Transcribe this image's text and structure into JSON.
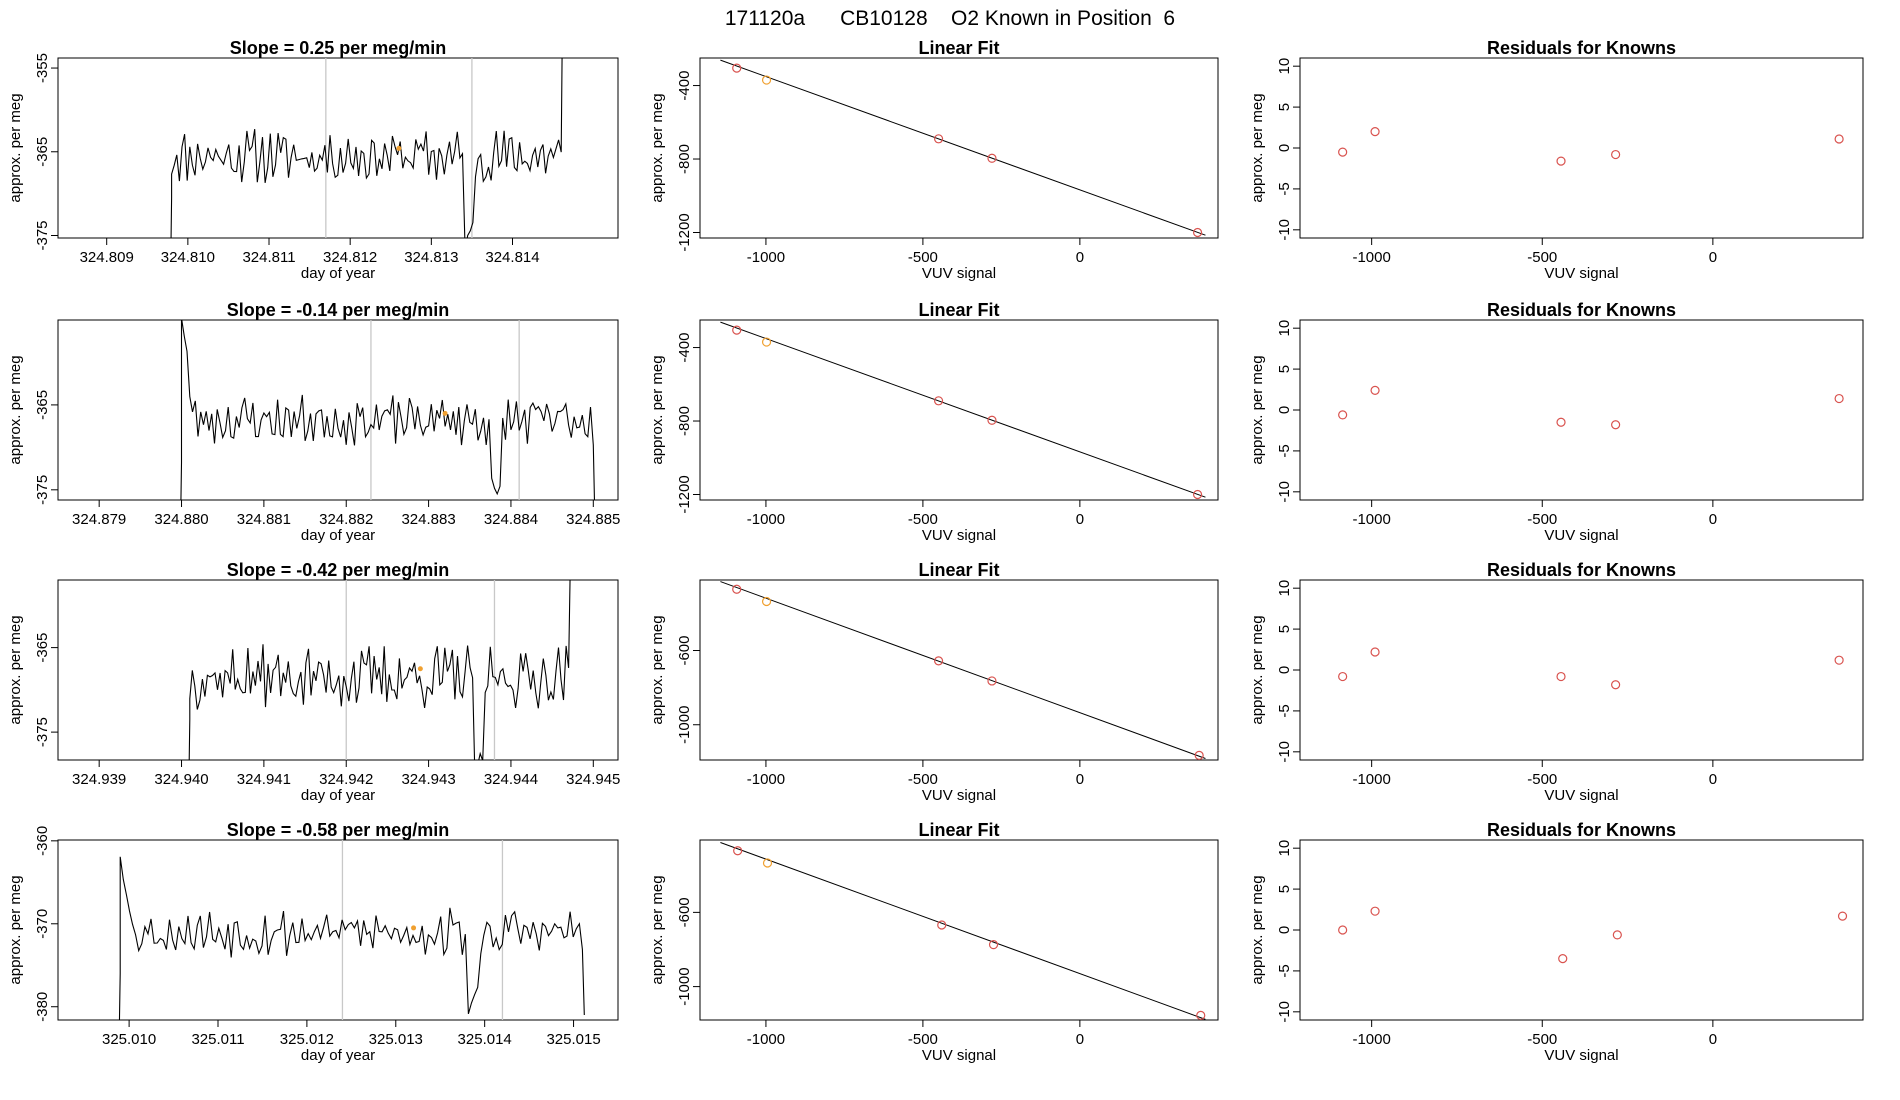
{
  "title": "171120a      CB10128    O2 Known in Position  6",
  "colors": {
    "point": "#d9534f",
    "highlight": "#f0a030",
    "line": "#000000",
    "marker": "#c8c8c8"
  },
  "chart_data": [
    {
      "type": "line",
      "title": "Slope =  0.25  per meg/min",
      "xlabel": "day of year",
      "ylabel": "approx. per meg",
      "xlim": [
        324.8084,
        324.8153
      ],
      "ylim": [
        -375.3,
        -353.8
      ],
      "xticks": [
        324.809,
        324.81,
        324.811,
        324.812,
        324.813,
        324.814
      ],
      "xtick_labels": [
        "324.809",
        "324.810",
        "324.811",
        "324.812",
        "324.813",
        "324.814"
      ],
      "yticks": [
        -355,
        -365,
        -375
      ],
      "ytick_labels": [
        "-355",
        "-365",
        "-375"
      ],
      "markers": [
        324.8117,
        324.8135
      ],
      "highlight": {
        "x": 324.8126,
        "y": -364.6
      },
      "series_start": 324.8098,
      "series_end": 324.8146,
      "level": -365.5,
      "noise": 2.5,
      "seed": 11,
      "end_jump": 20
    },
    {
      "type": "scatter",
      "title": "Linear Fit",
      "xlabel": "VUV signal",
      "ylabel": "approx. per meg",
      "xlim": [
        -1210,
        440
      ],
      "ylim": [
        -1230,
        -250
      ],
      "xticks": [
        -1000,
        -500,
        0
      ],
      "xtick_labels": [
        "-1000",
        "-500",
        "0"
      ],
      "yticks": [
        -400,
        -800,
        -1200
      ],
      "ytick_labels": [
        "-400",
        "-800",
        "-1200"
      ],
      "points": [
        {
          "x": -1093,
          "y": -305
        },
        {
          "x": -998,
          "y": -370,
          "highlight": true
        },
        {
          "x": -450,
          "y": -690
        },
        {
          "x": -280,
          "y": -796
        },
        {
          "x": 375,
          "y": -1200
        }
      ],
      "fit": {
        "slope": -0.617,
        "intercept": -968.0,
        "x1": -1145,
        "x2": 400
      }
    },
    {
      "type": "scatter",
      "title": "Residuals for Knowns",
      "xlabel": "VUV signal",
      "ylabel": "approx. per meg",
      "xlim": [
        -1210,
        440
      ],
      "ylim": [
        -11,
        11
      ],
      "xticks": [
        -1000,
        -500,
        0
      ],
      "xtick_labels": [
        "-1000",
        "-500",
        "0"
      ],
      "yticks": [
        10,
        5,
        0,
        -5,
        -10
      ],
      "ytick_labels": [
        "10",
        "5",
        "0",
        "-5",
        "-10"
      ],
      "points": [
        {
          "x": -1085,
          "y": -0.5
        },
        {
          "x": -990,
          "y": 2.0
        },
        {
          "x": -445,
          "y": -1.6
        },
        {
          "x": -285,
          "y": -0.8
        },
        {
          "x": 370,
          "y": 1.1
        }
      ]
    },
    {
      "type": "line",
      "title": "Slope =  -0.14  per meg/min",
      "xlabel": "day of year",
      "ylabel": "approx. per meg",
      "xlim": [
        324.8785,
        324.8853
      ],
      "ylim": [
        -376.2,
        -355.0
      ],
      "xticks": [
        324.879,
        324.88,
        324.881,
        324.882,
        324.883,
        324.884,
        324.885
      ],
      "xtick_labels": [
        "324.879",
        "324.880",
        "324.881",
        "324.882",
        "324.883",
        "324.884",
        "324.885"
      ],
      "yticks": [
        -365,
        -375
      ],
      "ytick_labels": [
        "-365",
        "-375"
      ],
      "markers": [
        324.8823,
        324.8841
      ],
      "highlight": {
        "x": 324.8832,
        "y": -366.0
      },
      "series_start": 324.88,
      "series_end": 324.885,
      "level": -366.8,
      "noise": 2.3,
      "seed": 23,
      "start_jump": 14,
      "end_jump": -12
    },
    {
      "type": "scatter",
      "title": "Linear Fit",
      "xlabel": "VUV signal",
      "ylabel": "approx. per meg",
      "xlim": [
        -1210,
        440
      ],
      "ylim": [
        -1230,
        -250
      ],
      "xticks": [
        -1000,
        -500,
        0
      ],
      "xtick_labels": [
        "-1000",
        "-500",
        "0"
      ],
      "yticks": [
        -400,
        -800,
        -1200
      ],
      "ytick_labels": [
        "-400",
        "-800",
        "-1200"
      ],
      "points": [
        {
          "x": -1093,
          "y": -305
        },
        {
          "x": -998,
          "y": -370,
          "highlight": true
        },
        {
          "x": -450,
          "y": -690
        },
        {
          "x": -280,
          "y": -796
        },
        {
          "x": 375,
          "y": -1200
        }
      ],
      "fit": {
        "slope": -0.617,
        "intercept": -968.0,
        "x1": -1145,
        "x2": 400
      }
    },
    {
      "type": "scatter",
      "title": "Residuals for Knowns",
      "xlabel": "VUV signal",
      "ylabel": "approx. per meg",
      "xlim": [
        -1210,
        440
      ],
      "ylim": [
        -11,
        11
      ],
      "xticks": [
        -1000,
        -500,
        0
      ],
      "xtick_labels": [
        "-1000",
        "-500",
        "0"
      ],
      "yticks": [
        10,
        5,
        0,
        -5,
        -10
      ],
      "ytick_labels": [
        "10",
        "5",
        "0",
        "-5",
        "-10"
      ],
      "points": [
        {
          "x": -1085,
          "y": -0.6
        },
        {
          "x": -990,
          "y": 2.4
        },
        {
          "x": -445,
          "y": -1.5
        },
        {
          "x": -285,
          "y": -1.8
        },
        {
          "x": 370,
          "y": 1.4
        }
      ]
    },
    {
      "type": "line",
      "title": "Slope =  -0.42  per meg/min",
      "xlabel": "day of year",
      "ylabel": "approx. per meg",
      "xlim": [
        324.9385,
        324.9453
      ],
      "ylim": [
        -378.3,
        -357.0
      ],
      "xticks": [
        324.939,
        324.94,
        324.941,
        324.942,
        324.943,
        324.944,
        324.945
      ],
      "xtick_labels": [
        "324.939",
        "324.940",
        "324.941",
        "324.942",
        "324.943",
        "324.944",
        "324.945"
      ],
      "yticks": [
        -365,
        -375
      ],
      "ytick_labels": [
        "-365",
        "-375"
      ],
      "markers": [
        324.942,
        324.9438
      ],
      "highlight": {
        "x": 324.9429,
        "y": -367.5
      },
      "series_start": 324.9401,
      "series_end": 324.9447,
      "level": -368.5,
      "noise": 3.0,
      "seed": 37,
      "end_jump": 12
    },
    {
      "type": "scatter",
      "title": "Linear Fit",
      "xlabel": "VUV signal",
      "ylabel": "approx. per meg",
      "xlim": [
        -1210,
        440
      ],
      "ylim": [
        -1190,
        -220
      ],
      "xticks": [
        -1000,
        -500,
        0
      ],
      "xtick_labels": [
        "-1000",
        "-500",
        "0"
      ],
      "yticks": [
        -600,
        -1000
      ],
      "ytick_labels": [
        "-600",
        "-1000"
      ],
      "points": [
        {
          "x": -1093,
          "y": -270
        },
        {
          "x": -998,
          "y": -336,
          "highlight": true
        },
        {
          "x": -450,
          "y": -656
        },
        {
          "x": -280,
          "y": -764
        },
        {
          "x": 380,
          "y": -1165
        }
      ],
      "fit": {
        "slope": -0.617,
        "intercept": -935.0,
        "x1": -1145,
        "x2": 400
      }
    },
    {
      "type": "scatter",
      "title": "Residuals for Knowns",
      "xlabel": "VUV signal",
      "ylabel": "approx. per meg",
      "xlim": [
        -1210,
        440
      ],
      "ylim": [
        -11,
        11
      ],
      "xticks": [
        -1000,
        -500,
        0
      ],
      "xtick_labels": [
        "-1000",
        "-500",
        "0"
      ],
      "yticks": [
        10,
        5,
        0,
        -5,
        -10
      ],
      "ytick_labels": [
        "10",
        "5",
        "0",
        "-5",
        "-10"
      ],
      "points": [
        {
          "x": -1085,
          "y": -0.8
        },
        {
          "x": -990,
          "y": 2.2
        },
        {
          "x": -445,
          "y": -0.8
        },
        {
          "x": -285,
          "y": -1.8
        },
        {
          "x": 370,
          "y": 1.2
        }
      ]
    },
    {
      "type": "line",
      "title": "Slope =  -0.58  per meg/min",
      "xlabel": "day of year",
      "ylabel": "approx. per meg",
      "xlim": [
        325.0092,
        325.0155
      ],
      "ylim": [
        -381.6,
        -359.9
      ],
      "xticks": [
        325.01,
        325.011,
        325.012,
        325.013,
        325.014,
        325.015
      ],
      "xtick_labels": [
        "325.010",
        "325.011",
        "325.012",
        "325.013",
        "325.014",
        "325.015"
      ],
      "yticks": [
        -360,
        -370,
        -380
      ],
      "ytick_labels": [
        "-360",
        "-370",
        "-380"
      ],
      "markers": [
        325.0124,
        325.0142
      ],
      "highlight": {
        "x": 325.0132,
        "y": -370.5
      },
      "series_start": 325.0099,
      "series_end": 325.0151,
      "level": -371.0,
      "noise": 2.3,
      "seed": 53,
      "start_jump": 11,
      "end_jump": -10
    },
    {
      "type": "scatter",
      "title": "Linear Fit",
      "xlabel": "VUV signal",
      "ylabel": "approx. per meg",
      "xlim": [
        -1210,
        440
      ],
      "ylim": [
        -1180,
        -210
      ],
      "xticks": [
        -1000,
        -500,
        0
      ],
      "xtick_labels": [
        "-1000",
        "-500",
        "0"
      ],
      "yticks": [
        -600,
        -1000
      ],
      "ytick_labels": [
        "-600",
        "-1000"
      ],
      "points": [
        {
          "x": -1090,
          "y": -268
        },
        {
          "x": -995,
          "y": -334,
          "highlight": true
        },
        {
          "x": -440,
          "y": -668
        },
        {
          "x": -275,
          "y": -774
        },
        {
          "x": 385,
          "y": -1155
        }
      ],
      "fit": {
        "slope": -0.617,
        "intercept": -930.0,
        "x1": -1145,
        "x2": 400
      }
    },
    {
      "type": "scatter",
      "title": "Residuals for Knowns",
      "xlabel": "VUV signal",
      "ylabel": "approx. per meg",
      "xlim": [
        -1210,
        440
      ],
      "ylim": [
        -11,
        11
      ],
      "xticks": [
        -1000,
        -500,
        0
      ],
      "xtick_labels": [
        "-1000",
        "-500",
        "0"
      ],
      "yticks": [
        10,
        5,
        0,
        -5,
        -10
      ],
      "ytick_labels": [
        "10",
        "5",
        "0",
        "-5",
        "-10"
      ],
      "points": [
        {
          "x": -1085,
          "y": 0.0
        },
        {
          "x": -990,
          "y": 2.3
        },
        {
          "x": -440,
          "y": -3.5
        },
        {
          "x": -280,
          "y": -0.6
        },
        {
          "x": 380,
          "y": 1.7
        }
      ]
    }
  ]
}
